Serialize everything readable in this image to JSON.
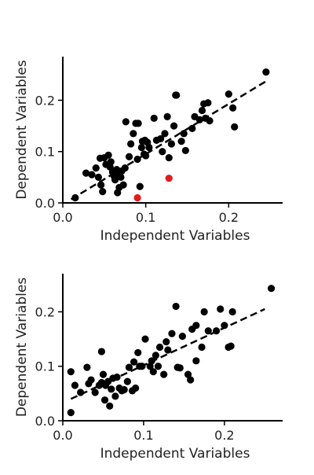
{
  "chart_data": [
    {
      "type": "scatter",
      "title": "",
      "xlabel": "Independent Variables",
      "ylabel": "Dependent Variables",
      "xlim": [
        0.0,
        0.265
      ],
      "ylim": [
        0.0,
        0.285
      ],
      "xticks": [
        "0.0",
        "0.1",
        "0.2"
      ],
      "yticks": [
        "0.0",
        "0.1",
        "0.2"
      ],
      "grid": false,
      "point_color": "#000000",
      "highlight_color": "#e41a1c",
      "fit_color": "#000000",
      "points": [
        [
          0.015,
          0.01
        ],
        [
          0.028,
          0.058
        ],
        [
          0.035,
          0.055
        ],
        [
          0.04,
          0.068
        ],
        [
          0.043,
          0.05
        ],
        [
          0.045,
          0.087
        ],
        [
          0.046,
          0.035
        ],
        [
          0.048,
          0.022
        ],
        [
          0.05,
          0.088
        ],
        [
          0.052,
          0.075
        ],
        [
          0.055,
          0.093
        ],
        [
          0.057,
          0.07
        ],
        [
          0.058,
          0.08
        ],
        [
          0.06,
          0.06
        ],
        [
          0.062,
          0.052
        ],
        [
          0.063,
          0.045
        ],
        [
          0.065,
          0.065
        ],
        [
          0.066,
          0.02
        ],
        [
          0.067,
          0.055
        ],
        [
          0.068,
          0.03
        ],
        [
          0.07,
          0.05
        ],
        [
          0.071,
          0.062
        ],
        [
          0.073,
          0.035
        ],
        [
          0.075,
          0.068
        ],
        [
          0.076,
          0.158
        ],
        [
          0.08,
          0.09
        ],
        [
          0.082,
          0.115
        ],
        [
          0.085,
          0.135
        ],
        [
          0.088,
          0.155
        ],
        [
          0.09,
          0.085
        ],
        [
          0.091,
          0.155
        ],
        [
          0.093,
          0.032
        ],
        [
          0.095,
          0.108
        ],
        [
          0.096,
          0.12
        ],
        [
          0.098,
          0.095
        ],
        [
          0.099,
          0.122
        ],
        [
          0.1,
          0.092
        ],
        [
          0.102,
          0.118
        ],
        [
          0.104,
          0.108
        ],
        [
          0.11,
          0.165
        ],
        [
          0.113,
          0.122
        ],
        [
          0.118,
          0.125
        ],
        [
          0.12,
          0.1
        ],
        [
          0.123,
          0.135
        ],
        [
          0.126,
          0.168
        ],
        [
          0.128,
          0.088
        ],
        [
          0.131,
          0.115
        ],
        [
          0.134,
          0.15
        ],
        [
          0.136,
          0.21
        ],
        [
          0.137,
          0.21
        ],
        [
          0.143,
          0.12
        ],
        [
          0.146,
          0.135
        ],
        [
          0.148,
          0.102
        ],
        [
          0.156,
          0.145
        ],
        [
          0.159,
          0.168
        ],
        [
          0.165,
          0.162
        ],
        [
          0.168,
          0.18
        ],
        [
          0.17,
          0.193
        ],
        [
          0.172,
          0.165
        ],
        [
          0.175,
          0.195
        ],
        [
          0.177,
          0.16
        ],
        [
          0.2,
          0.212
        ],
        [
          0.205,
          0.185
        ],
        [
          0.207,
          0.148
        ],
        [
          0.245,
          0.255
        ]
      ],
      "highlight_points": [
        [
          0.09,
          0.01
        ],
        [
          0.128,
          0.048
        ]
      ],
      "fit_line": {
        "x": [
          0.01,
          0.245
        ],
        "y": [
          0.007,
          0.237
        ]
      }
    },
    {
      "type": "scatter",
      "title": "",
      "xlabel": "Independent Variables",
      "ylabel": "Dependent Variables",
      "xlim": [
        0.0,
        0.272
      ],
      "ylim": [
        0.0,
        0.27
      ],
      "xticks": [
        "0.0",
        "0.1",
        "0.2"
      ],
      "yticks": [
        "0.0",
        "0.1",
        "0.2"
      ],
      "grid": false,
      "point_color": "#000000",
      "highlight_color": "#e41a1c",
      "fit_color": "#000000",
      "points": [
        [
          0.01,
          0.015
        ],
        [
          0.01,
          0.09
        ],
        [
          0.015,
          0.065
        ],
        [
          0.022,
          0.052
        ],
        [
          0.03,
          0.098
        ],
        [
          0.032,
          0.068
        ],
        [
          0.035,
          0.075
        ],
        [
          0.04,
          0.052
        ],
        [
          0.045,
          0.065
        ],
        [
          0.048,
          0.07
        ],
        [
          0.048,
          0.127
        ],
        [
          0.05,
          0.085
        ],
        [
          0.052,
          0.038
        ],
        [
          0.053,
          0.065
        ],
        [
          0.056,
          0.072
        ],
        [
          0.058,
          0.027
        ],
        [
          0.06,
          0.058
        ],
        [
          0.062,
          0.078
        ],
        [
          0.065,
          0.045
        ],
        [
          0.067,
          0.08
        ],
        [
          0.07,
          0.06
        ],
        [
          0.073,
          0.055
        ],
        [
          0.076,
          0.057
        ],
        [
          0.08,
          0.072
        ],
        [
          0.082,
          0.098
        ],
        [
          0.086,
          0.055
        ],
        [
          0.088,
          0.108
        ],
        [
          0.09,
          0.06
        ],
        [
          0.093,
          0.125
        ],
        [
          0.095,
          0.1
        ],
        [
          0.098,
          0.1
        ],
        [
          0.102,
          0.15
        ],
        [
          0.108,
          0.1
        ],
        [
          0.11,
          0.11
        ],
        [
          0.112,
          0.09
        ],
        [
          0.115,
          0.12
        ],
        [
          0.118,
          0.1
        ],
        [
          0.12,
          0.135
        ],
        [
          0.125,
          0.085
        ],
        [
          0.128,
          0.145
        ],
        [
          0.13,
          0.13
        ],
        [
          0.135,
          0.16
        ],
        [
          0.14,
          0.21
        ],
        [
          0.142,
          0.098
        ],
        [
          0.145,
          0.097
        ],
        [
          0.148,
          0.155
        ],
        [
          0.155,
          0.085
        ],
        [
          0.158,
          0.075
        ],
        [
          0.16,
          0.168
        ],
        [
          0.165,
          0.175
        ],
        [
          0.165,
          0.11
        ],
        [
          0.172,
          0.135
        ],
        [
          0.175,
          0.2
        ],
        [
          0.18,
          0.165
        ],
        [
          0.19,
          0.165
        ],
        [
          0.195,
          0.205
        ],
        [
          0.2,
          0.175
        ],
        [
          0.205,
          0.135
        ],
        [
          0.208,
          0.137
        ],
        [
          0.21,
          0.2
        ],
        [
          0.258,
          0.243
        ]
      ],
      "highlight_points": [],
      "fit_line": {
        "x": [
          0.01,
          0.25
        ],
        "y": [
          0.04,
          0.205
        ]
      }
    }
  ]
}
